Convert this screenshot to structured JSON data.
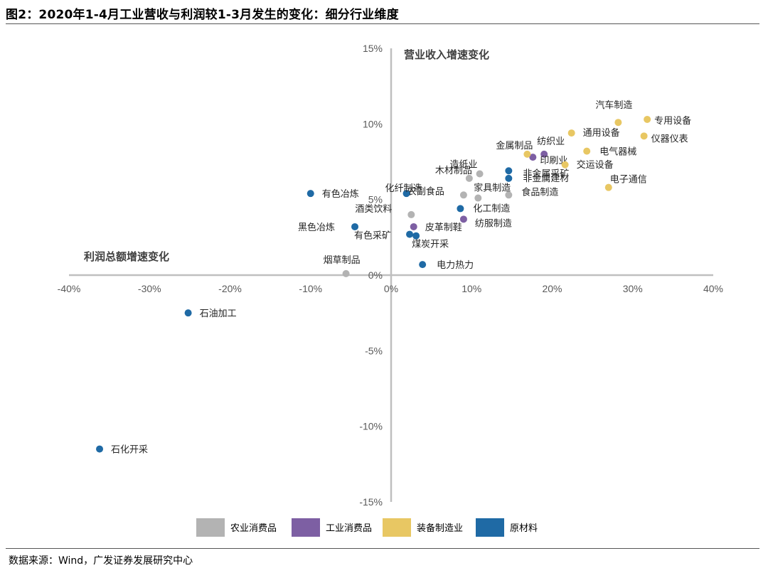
{
  "figure": {
    "title": "图2：2020年1-4月工业营收与利润较1-3月发生的变化：细分行业维度",
    "source": "数据来源：Wind，广发证券发展研究中心"
  },
  "colors": {
    "agri_consumer": "#b3b3b3",
    "industrial_consumer": "#7d5fa3",
    "equipment": "#e8c763",
    "raw_materials": "#1f6aa5",
    "axis": "#bfbfbf"
  },
  "chart_data": {
    "type": "scatter",
    "ylabel": "营业收入增速变化",
    "xlabel": "利润总额增速变化",
    "xlim": [
      -0.4,
      0.4
    ],
    "ylim": [
      -0.15,
      0.15
    ],
    "x_ticks": [
      "-40%",
      "-30%",
      "-20%",
      "-10%",
      "0%",
      "10%",
      "20%",
      "30%",
      "40%"
    ],
    "y_ticks": [
      "15%",
      "10%",
      "5%",
      "0%",
      "-5%",
      "-10%",
      "-15%"
    ],
    "legend_position": "bottom",
    "series": [
      {
        "name": "农业消费品",
        "color_key": "agri_consumer",
        "points": [
          {
            "label": "造纸业",
            "x": 0.11,
            "y": 0.067
          },
          {
            "label": "木材制品",
            "x": 0.097,
            "y": 0.064
          },
          {
            "label": "家具制造",
            "x": 0.108,
            "y": 0.051
          },
          {
            "label": "农副食品",
            "x": 0.09,
            "y": 0.053
          },
          {
            "label": "食品制造",
            "x": 0.146,
            "y": 0.053
          },
          {
            "label": "酒类饮料",
            "x": 0.025,
            "y": 0.04
          },
          {
            "label": "烟草制品",
            "x": -0.056,
            "y": 0.001
          }
        ]
      },
      {
        "name": "工业消费品",
        "color_key": "industrial_consumer",
        "points": [
          {
            "label": "纺织业",
            "x": 0.19,
            "y": 0.08
          },
          {
            "label": "印刷业",
            "x": 0.176,
            "y": 0.078
          },
          {
            "label": "皮革制鞋",
            "x": 0.028,
            "y": 0.032
          },
          {
            "label": "纺服制造",
            "x": 0.09,
            "y": 0.037
          }
        ]
      },
      {
        "name": "装备制造业",
        "color_key": "equipment",
        "points": [
          {
            "label": "汽车制造",
            "x": 0.282,
            "y": 0.101
          },
          {
            "label": "专用设备",
            "x": 0.318,
            "y": 0.103
          },
          {
            "label": "通用设备",
            "x": 0.224,
            "y": 0.094
          },
          {
            "label": "仪器仪表",
            "x": 0.314,
            "y": 0.092
          },
          {
            "label": "金属制品",
            "x": 0.169,
            "y": 0.08
          },
          {
            "label": "电气器械",
            "x": 0.243,
            "y": 0.082
          },
          {
            "label": "交运设备",
            "x": 0.216,
            "y": 0.073
          },
          {
            "label": "电子通信",
            "x": 0.27,
            "y": 0.058
          }
        ]
      },
      {
        "name": "原材料",
        "color_key": "raw_materials",
        "points": [
          {
            "label": "非金属采矿",
            "x": 0.146,
            "y": 0.069
          },
          {
            "label": "非金属建材",
            "x": 0.146,
            "y": 0.064
          },
          {
            "label": "化纤制造",
            "x": 0.019,
            "y": 0.054
          },
          {
            "label": "有色冶炼",
            "x": -0.1,
            "y": 0.054
          },
          {
            "label": "化工制造",
            "x": 0.086,
            "y": 0.044
          },
          {
            "label": "黑色冶炼",
            "x": -0.045,
            "y": 0.032
          },
          {
            "label": "有色采矿",
            "x": 0.023,
            "y": 0.027
          },
          {
            "label": "煤炭开采",
            "x": 0.031,
            "y": 0.026
          },
          {
            "label": "电力热力",
            "x": 0.039,
            "y": 0.007
          },
          {
            "label": "石油加工",
            "x": -0.252,
            "y": -0.025
          },
          {
            "label": "石化开采",
            "x": -0.362,
            "y": -0.115
          }
        ]
      }
    ]
  }
}
